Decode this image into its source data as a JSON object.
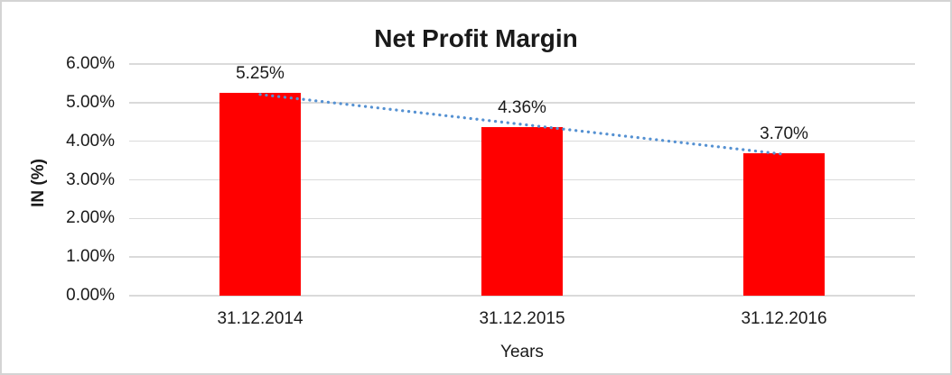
{
  "window": {
    "background": "#FFFFFF",
    "border_color": "#D4D4D4"
  },
  "chart_data": {
    "type": "bar",
    "title": "Net Profit Margin",
    "xlabel": "Years",
    "ylabel": "IN (%)",
    "categories": [
      "31.12.2014",
      "31.12.2015",
      "31.12.2016"
    ],
    "values": [
      5.25,
      4.36,
      3.7
    ],
    "value_labels": [
      "5.25%",
      "4.36%",
      "3.70%"
    ],
    "ylim": [
      0,
      6
    ],
    "yticks": [
      6,
      5,
      4,
      3,
      2,
      1,
      0
    ],
    "ytick_labels": [
      "6.00%",
      "5.00%",
      "4.00%",
      "3.00%",
      "2.00%",
      "1.00%",
      "0.00%"
    ],
    "grid": "horizontal",
    "legend": "none",
    "bar_color": "#FF0000",
    "gridline_color": "#DADADA",
    "trendline": {
      "type": "linear",
      "style": "dotted",
      "color": "#5591D2"
    }
  }
}
